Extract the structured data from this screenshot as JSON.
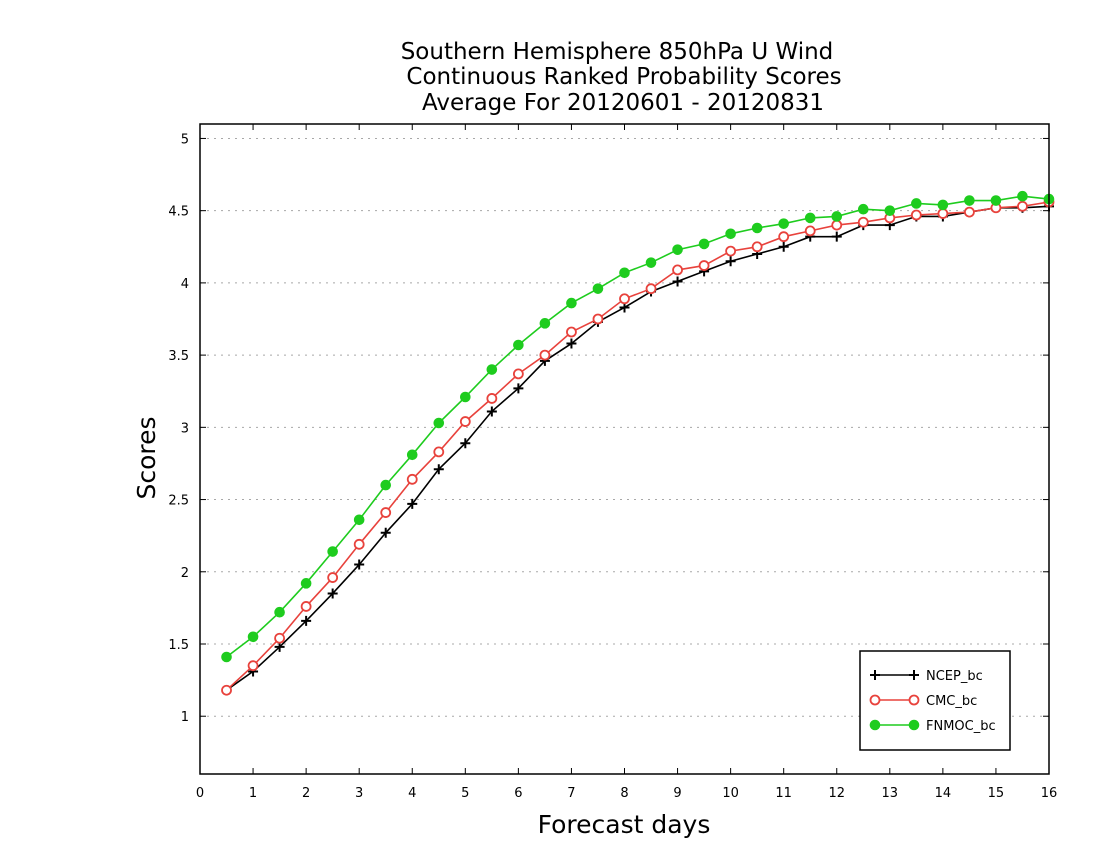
{
  "chart_data": {
    "type": "line",
    "title_lines": [
      "Southern Hemisphere 850hPa U Wind",
      "Continuous Ranked Probability Scores",
      "Average For 20120601 - 20120831"
    ],
    "xlabel": "Forecast days",
    "ylabel": "Scores",
    "xlim": [
      0,
      16
    ],
    "ylim": [
      0.6,
      5.1
    ],
    "x_ticks": [
      0,
      1,
      2,
      3,
      4,
      5,
      6,
      7,
      8,
      9,
      10,
      11,
      12,
      13,
      14,
      15,
      16
    ],
    "x_tick_labels": [
      "0",
      "1",
      "2",
      "3",
      "4",
      "5",
      "6",
      "7",
      "8",
      "9",
      "10",
      "11",
      "12",
      "13",
      "14",
      "15",
      "16"
    ],
    "y_ticks": [
      1,
      1.5,
      2,
      2.5,
      3,
      3.5,
      4,
      4.5,
      5
    ],
    "y_tick_labels": [
      "1",
      "1.5",
      "2",
      "2.5",
      "3",
      "3.5",
      "4",
      "4.5",
      "5"
    ],
    "grid": "horizontal dotted",
    "legend_position": "bottom-right",
    "x": [
      0.5,
      1,
      1.5,
      2,
      2.5,
      3,
      3.5,
      4,
      4.5,
      5,
      5.5,
      6,
      6.5,
      7,
      7.5,
      8,
      8.5,
      9,
      9.5,
      10,
      10.5,
      11,
      11.5,
      12,
      12.5,
      13,
      13.5,
      14,
      14.5,
      15,
      15.5,
      16
    ],
    "series": [
      {
        "name": "NCEP_bc",
        "color": "#000000",
        "marker": "plus",
        "values": [
          1.18,
          1.31,
          1.48,
          1.66,
          1.85,
          2.05,
          2.27,
          2.47,
          2.71,
          2.89,
          3.11,
          3.27,
          3.46,
          3.58,
          3.73,
          3.83,
          3.94,
          4.01,
          4.08,
          4.15,
          4.2,
          4.25,
          4.32,
          4.32,
          4.4,
          4.4,
          4.46,
          4.46,
          4.49,
          4.52,
          4.52,
          4.53
        ]
      },
      {
        "name": "CMC_bc",
        "color": "#e8423c",
        "marker": "open-circle",
        "values": [
          1.18,
          1.35,
          1.54,
          1.76,
          1.96,
          2.19,
          2.41,
          2.64,
          2.83,
          3.04,
          3.2,
          3.37,
          3.5,
          3.66,
          3.75,
          3.89,
          3.96,
          4.09,
          4.12,
          4.22,
          4.25,
          4.32,
          4.36,
          4.4,
          4.42,
          4.45,
          4.47,
          4.48,
          4.49,
          4.52,
          4.53,
          4.56
        ]
      },
      {
        "name": "FNMOC_bc",
        "color": "#1ecc1e",
        "marker": "filled-circle",
        "values": [
          1.41,
          1.55,
          1.72,
          1.92,
          2.14,
          2.36,
          2.6,
          2.81,
          3.03,
          3.21,
          3.4,
          3.57,
          3.72,
          3.86,
          3.96,
          4.07,
          4.14,
          4.23,
          4.27,
          4.34,
          4.38,
          4.41,
          4.45,
          4.46,
          4.51,
          4.5,
          4.55,
          4.54,
          4.57,
          4.57,
          4.6,
          4.58
        ]
      }
    ]
  }
}
